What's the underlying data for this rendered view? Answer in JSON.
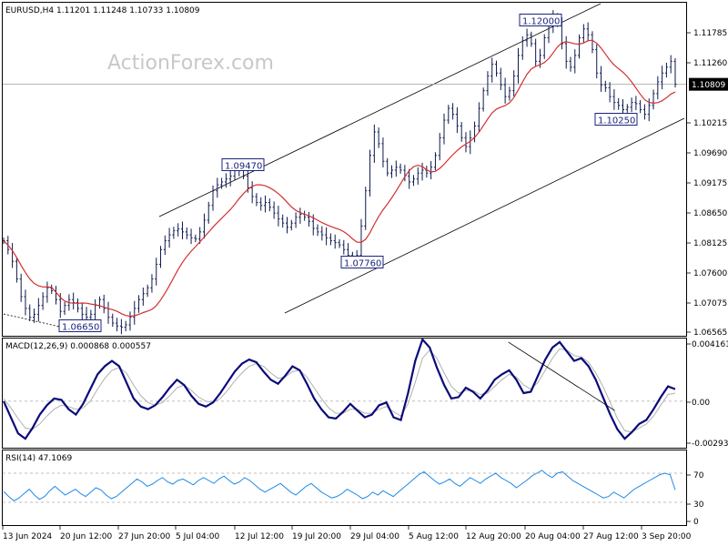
{
  "chart_data": {
    "type": "line",
    "symbol": "EURUSD,H4",
    "ohlc": {
      "open": "1.11201",
      "high": "1.11248",
      "low": "1.10733",
      "close": "1.10809"
    },
    "watermark": "ActionForex.com",
    "x_ticks": [
      "13 Jun 2024",
      "20 Jun 12:00",
      "27 Jun 20:00",
      "5 Jul 04:00",
      "12 Jul 12:00",
      "19 Jul 20:00",
      "29 Jul 04:00",
      "5 Aug 12:00",
      "12 Aug 20:00",
      "20 Aug 04:00",
      "27 Aug 12:00",
      "3 Sep 20:00"
    ],
    "price_panel": {
      "ylim": [
        1.0655,
        1.1218
      ],
      "y_ticks": [
        "1.11785",
        "1.11260",
        "1.10215",
        "1.09690",
        "1.09175",
        "1.08650",
        "1.08125",
        "1.07600",
        "1.07075",
        "1.06565"
      ],
      "current_price": "1.10809",
      "levels": [
        {
          "label": "1.12000",
          "bar": 155
        },
        {
          "label": "1.09470",
          "bar": 72
        },
        {
          "label": "1.07760",
          "bar": 105
        },
        {
          "label": "1.06650",
          "bar": 28
        },
        {
          "label": "1.10250",
          "bar": 176
        }
      ],
      "close_series": [
        1.0815,
        1.08,
        1.078,
        1.075,
        1.072,
        1.07,
        1.0685,
        1.069,
        1.0705,
        1.072,
        1.0735,
        1.073,
        1.0715,
        1.0695,
        1.0705,
        1.0715,
        1.071,
        1.07,
        1.069,
        1.0685,
        1.069,
        1.0705,
        1.0715,
        1.07,
        1.0685,
        1.0675,
        1.067,
        1.0668,
        1.0672,
        1.0685,
        1.07,
        1.0715,
        1.0725,
        1.0735,
        1.075,
        1.0775,
        1.08,
        1.0815,
        1.0825,
        1.0832,
        1.0835,
        1.083,
        1.0825,
        1.082,
        1.0818,
        1.083,
        1.085,
        1.0875,
        1.09,
        1.091,
        1.0915,
        1.092,
        1.0925,
        1.0935,
        1.094,
        1.0925,
        1.0905,
        1.089,
        1.088,
        1.0875,
        1.088,
        1.0872,
        1.0862,
        1.0852,
        1.0845,
        1.0838,
        1.0845,
        1.0855,
        1.086,
        1.0855,
        1.0848,
        1.0836,
        1.083,
        1.0825,
        1.082,
        1.0815,
        1.0812,
        1.0808,
        1.08,
        1.079,
        1.078,
        1.079,
        1.084,
        1.09,
        1.096,
        1.1,
        1.098,
        1.095,
        1.093,
        1.0935,
        1.094,
        1.0935,
        1.0925,
        1.0915,
        1.092,
        1.093,
        1.0935,
        1.093,
        1.094,
        1.096,
        1.099,
        1.102,
        1.104,
        1.103,
        1.101,
        1.099,
        1.0975,
        1.099,
        1.101,
        1.104,
        1.107,
        1.1095,
        1.1115,
        1.11,
        1.108,
        1.106,
        1.107,
        1.1095,
        1.113,
        1.1155,
        1.1165,
        1.115,
        1.112,
        1.113,
        1.116,
        1.118,
        1.1195,
        1.1185,
        1.115,
        1.112,
        1.111,
        1.113,
        1.116,
        1.1175,
        1.1165,
        1.114,
        1.11,
        1.108,
        1.1075,
        1.106,
        1.105,
        1.1045,
        1.1038,
        1.1042,
        1.105,
        1.1048,
        1.1038,
        1.103,
        1.1045,
        1.1065,
        1.1085,
        1.11,
        1.111,
        1.112,
        1.1081
      ]
    },
    "macd_panel": {
      "title": "MACD(12,26,9) 0.000868 0.000557",
      "ylim": [
        -0.0034,
        0.0046
      ],
      "y_ticks": [
        "0.004161",
        "0.00",
        "-0.002934"
      ],
      "macd_series": [
        0.0,
        -0.0012,
        -0.0024,
        -0.0028,
        -0.002,
        -0.001,
        -0.0003,
        0.0002,
        0.0001,
        -0.0006,
        -0.001,
        -0.0002,
        0.0009,
        0.002,
        0.0026,
        0.003,
        0.0026,
        0.0014,
        0.0002,
        -0.0004,
        -0.0006,
        -0.0003,
        0.0003,
        0.001,
        0.0016,
        0.0012,
        0.0004,
        -0.0002,
        -0.0004,
        -0.0001,
        0.0006,
        0.0014,
        0.0022,
        0.0028,
        0.0031,
        0.0029,
        0.0022,
        0.0016,
        0.0013,
        0.0019,
        0.0026,
        0.0023,
        0.0013,
        0.0002,
        -0.0006,
        -0.0012,
        -0.0013,
        -0.0008,
        -0.0002,
        -0.0007,
        -0.0012,
        -0.001,
        -0.0003,
        -0.0001,
        -0.0012,
        -0.0014,
        0.0006,
        0.003,
        0.0046,
        0.004,
        0.0025,
        0.0012,
        0.0002,
        0.0003,
        0.001,
        0.0007,
        0.0002,
        0.0008,
        0.0016,
        0.002,
        0.0023,
        0.0016,
        0.0006,
        0.0007,
        0.0019,
        0.0031,
        0.004,
        0.0044,
        0.0037,
        0.003,
        0.0032,
        0.0026,
        0.0016,
        0.0003,
        -0.001,
        -0.0021,
        -0.0028,
        -0.0023,
        -0.0017,
        -0.0014,
        -0.0006,
        0.0003,
        0.0011,
        0.0009
      ],
      "signal_series": [
        0.0002,
        -0.0005,
        -0.0013,
        -0.002,
        -0.0021,
        -0.0017,
        -0.0011,
        -0.0006,
        -0.0003,
        -0.0004,
        -0.0006,
        -0.0005,
        0.0,
        0.0009,
        0.0017,
        0.0023,
        0.0025,
        0.0021,
        0.0012,
        0.0004,
        -0.0001,
        -0.0003,
        -0.0001,
        0.0004,
        0.001,
        0.0012,
        0.0008,
        0.0003,
        0.0,
        -0.0001,
        0.0002,
        0.0008,
        0.0015,
        0.0021,
        0.0026,
        0.0028,
        0.0026,
        0.0021,
        0.0017,
        0.0018,
        0.0022,
        0.0023,
        0.0018,
        0.001,
        0.0002,
        -0.0005,
        -0.0009,
        -0.0009,
        -0.0006,
        -0.0006,
        -0.0009,
        -0.0009,
        -0.0006,
        -0.0004,
        -0.0008,
        -0.0011,
        -0.0002,
        0.0014,
        0.0032,
        0.0038,
        0.0032,
        0.0021,
        0.0011,
        0.0006,
        0.0008,
        0.0008,
        0.0005,
        0.0006,
        0.0011,
        0.0016,
        0.002,
        0.0018,
        0.0012,
        0.0009,
        0.0014,
        0.0023,
        0.0032,
        0.0039,
        0.0038,
        0.0034,
        0.0033,
        0.0029,
        0.0021,
        0.0011,
        -0.0001,
        -0.0013,
        -0.0022,
        -0.0023,
        -0.002,
        -0.0017,
        -0.0011,
        -0.0003,
        0.0005,
        0.0006
      ],
      "trendline": [
        [
          0.7515,
          0.0044
        ],
        [
          0.91,
          -0.0007
        ]
      ]
    },
    "rsi_panel": {
      "title": "RSI(14) 47.1069",
      "ylim": [
        0,
        100
      ],
      "y_ticks": [
        "70",
        "30",
        "0"
      ],
      "levels": [
        70,
        30
      ],
      "rsi_series": [
        45,
        38,
        32,
        36,
        42,
        48,
        40,
        34,
        38,
        46,
        52,
        46,
        40,
        44,
        48,
        42,
        38,
        44,
        50,
        47,
        40,
        35,
        38,
        44,
        50,
        56,
        62,
        58,
        52,
        55,
        60,
        64,
        58,
        55,
        60,
        62,
        58,
        54,
        60,
        64,
        60,
        56,
        62,
        66,
        60,
        55,
        58,
        64,
        60,
        54,
        48,
        44,
        48,
        52,
        56,
        50,
        44,
        40,
        46,
        52,
        56,
        50,
        44,
        40,
        36,
        38,
        42,
        48,
        44,
        40,
        35,
        38,
        44,
        40,
        46,
        42,
        38,
        44,
        50,
        56,
        62,
        68,
        72,
        66,
        60,
        55,
        58,
        62,
        56,
        52,
        58,
        64,
        60,
        56,
        62,
        66,
        70,
        64,
        60,
        56,
        50,
        55,
        60,
        66,
        70,
        74,
        68,
        64,
        70,
        72,
        66,
        60,
        56,
        52,
        48,
        44,
        40,
        36,
        38,
        44,
        40,
        36,
        42,
        48,
        52,
        56,
        60,
        64,
        68,
        70,
        68,
        47
      ]
    }
  }
}
